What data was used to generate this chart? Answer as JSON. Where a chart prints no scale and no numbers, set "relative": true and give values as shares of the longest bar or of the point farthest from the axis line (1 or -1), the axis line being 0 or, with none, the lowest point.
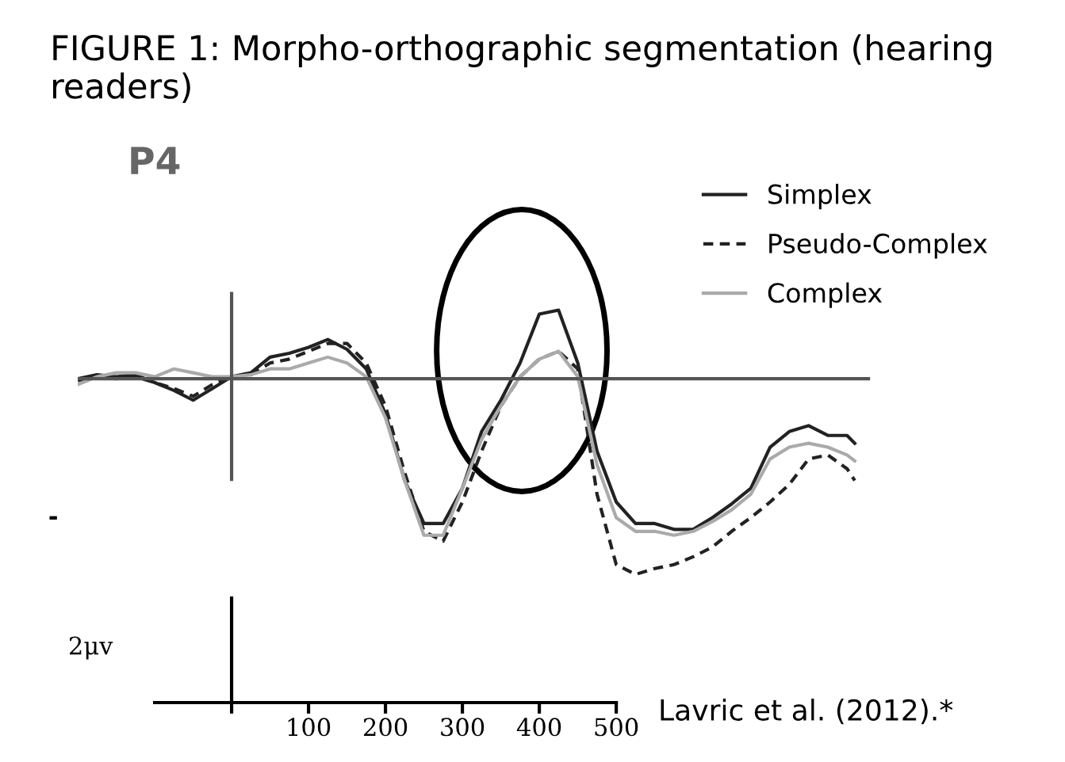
{
  "chart_data": {
    "type": "line",
    "title": "FIGURE 1: Morpho-orthographic segmentation (hearing readers)",
    "relative": true,
    "legend": "top right",
    "annotations": [
      "P4",
      "-",
      "Lavric et al. (2012).*",
      "2μv"
    ],
    "x": [
      -200,
      -175,
      -150,
      -125,
      -100,
      -75,
      -50,
      -25,
      0,
      25,
      50,
      75,
      100,
      125,
      150,
      175,
      200,
      225,
      250,
      275,
      300,
      325,
      350,
      375,
      400,
      425,
      450,
      475,
      500,
      525,
      550,
      575,
      600,
      625,
      650,
      675,
      700,
      725,
      750,
      775,
      800,
      810
    ],
    "xlim": [
      -200,
      830
    ],
    "xticks": [
      {
        "value": 0,
        "label": null
      },
      100,
      200,
      300,
      400,
      500
    ],
    "series": [
      {
        "name": "Simplex",
        "color": "#222222",
        "line_style": "solid",
        "values": [
          0.0,
          0.02,
          0.01,
          0.02,
          -0.02,
          -0.06,
          -0.11,
          -0.05,
          0.01,
          0.03,
          0.11,
          0.13,
          0.16,
          0.2,
          0.15,
          0.05,
          -0.18,
          -0.52,
          -0.74,
          -0.74,
          -0.56,
          -0.27,
          -0.11,
          0.08,
          0.33,
          0.35,
          0.08,
          -0.37,
          -0.63,
          -0.74,
          -0.74,
          -0.77,
          -0.77,
          -0.71,
          -0.64,
          -0.56,
          -0.35,
          -0.27,
          -0.24,
          -0.29,
          -0.29,
          -0.33
        ]
      },
      {
        "name": "Pseudo-Complex",
        "color": "#222222",
        "line_style": "dashed",
        "values": [
          -0.01,
          0.01,
          0.0,
          0.01,
          -0.02,
          -0.05,
          -0.09,
          -0.03,
          0.01,
          0.02,
          0.08,
          0.1,
          0.14,
          0.18,
          0.18,
          0.08,
          -0.14,
          -0.48,
          -0.78,
          -0.83,
          -0.63,
          -0.37,
          -0.14,
          0.01,
          0.1,
          0.14,
          0.05,
          -0.59,
          -0.95,
          -1.0,
          -0.97,
          -0.95,
          -0.91,
          -0.86,
          -0.78,
          -0.71,
          -0.63,
          -0.54,
          -0.41,
          -0.39,
          -0.46,
          -0.52
        ]
      },
      {
        "name": "Complex",
        "color": "#aaaaaa",
        "line_style": "solid",
        "values": [
          -0.03,
          0.01,
          0.03,
          0.03,
          0.01,
          0.05,
          0.03,
          0.01,
          0.01,
          0.02,
          0.05,
          0.05,
          0.08,
          0.11,
          0.08,
          0.01,
          -0.2,
          -0.52,
          -0.8,
          -0.8,
          -0.56,
          -0.31,
          -0.14,
          0.01,
          0.1,
          0.14,
          0.01,
          -0.44,
          -0.71,
          -0.78,
          -0.78,
          -0.8,
          -0.78,
          -0.73,
          -0.67,
          -0.59,
          -0.41,
          -0.35,
          -0.33,
          -0.35,
          -0.39,
          -0.42
        ]
      }
    ]
  }
}
